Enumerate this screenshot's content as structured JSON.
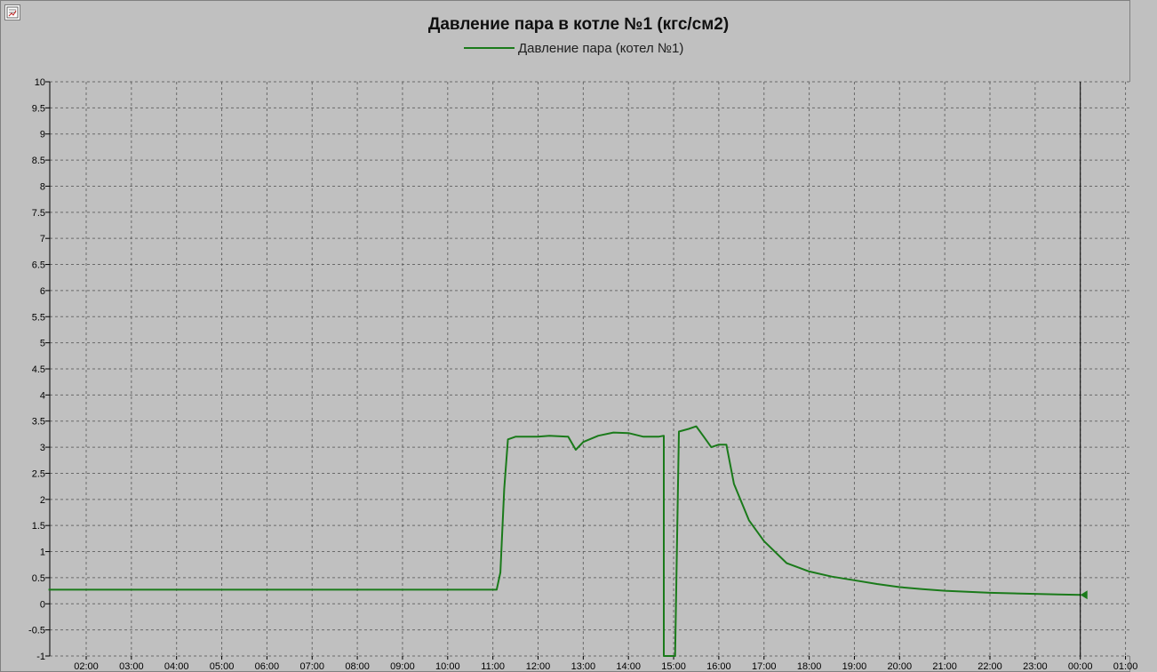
{
  "window": {
    "icon": "chart-properties-icon"
  },
  "chart_data": {
    "type": "line",
    "title": "Давление пара в котле №1 (кгс/см2)",
    "xlabel": "",
    "ylabel": "",
    "ylim": [
      -1,
      10
    ],
    "xlim": [
      "01:10",
      "01:00"
    ],
    "grid": true,
    "legend_position": "top-center",
    "y_ticks": [
      "10",
      "9.5",
      "9",
      "8.5",
      "8",
      "7.5",
      "7",
      "6.5",
      "6",
      "5.5",
      "5",
      "4.5",
      "4",
      "3.5",
      "3",
      "2.5",
      "2",
      "1.5",
      "1",
      "0.5",
      "0",
      "-0.5",
      "-1"
    ],
    "x_ticks": [
      "02:00",
      "03:00",
      "04:00",
      "05:00",
      "06:00",
      "07:00",
      "08:00",
      "09:00",
      "10:00",
      "11:00",
      "12:00",
      "13:00",
      "14:00",
      "15:00",
      "16:00",
      "17:00",
      "18:00",
      "19:00",
      "20:00",
      "21:00",
      "22:00",
      "23:00",
      "00:00",
      "01:00"
    ],
    "cursor_time": "00:00",
    "series": [
      {
        "name": "Давление пара (котел №1)",
        "color": "#1a7a1a",
        "points": [
          [
            "01:10",
            0.27
          ],
          [
            "11:05",
            0.27
          ],
          [
            "11:10",
            0.6
          ],
          [
            "11:15",
            2.2
          ],
          [
            "11:20",
            3.15
          ],
          [
            "11:30",
            3.2
          ],
          [
            "12:00",
            3.2
          ],
          [
            "12:15",
            3.22
          ],
          [
            "12:40",
            3.2
          ],
          [
            "12:50",
            2.95
          ],
          [
            "13:00",
            3.1
          ],
          [
            "13:20",
            3.22
          ],
          [
            "13:40",
            3.28
          ],
          [
            "14:00",
            3.27
          ],
          [
            "14:20",
            3.2
          ],
          [
            "14:40",
            3.2
          ],
          [
            "14:47",
            3.22
          ],
          [
            "14:47",
            -1.0
          ],
          [
            "14:57",
            -1.0
          ],
          [
            "15:02",
            -1.0
          ],
          [
            "15:07",
            3.3
          ],
          [
            "15:20",
            3.35
          ],
          [
            "15:30",
            3.4
          ],
          [
            "15:40",
            3.2
          ],
          [
            "15:50",
            3.0
          ],
          [
            "16:00",
            3.05
          ],
          [
            "16:10",
            3.05
          ],
          [
            "16:20",
            2.3
          ],
          [
            "16:40",
            1.6
          ],
          [
            "17:00",
            1.2
          ],
          [
            "17:30",
            0.78
          ],
          [
            "18:00",
            0.62
          ],
          [
            "18:30",
            0.52
          ],
          [
            "19:00",
            0.45
          ],
          [
            "19:30",
            0.38
          ],
          [
            "20:00",
            0.32
          ],
          [
            "20:30",
            0.28
          ],
          [
            "21:00",
            0.25
          ],
          [
            "21:30",
            0.23
          ],
          [
            "22:00",
            0.21
          ],
          [
            "22:30",
            0.2
          ],
          [
            "23:00",
            0.19
          ],
          [
            "23:30",
            0.18
          ],
          [
            "00:00",
            0.17
          ]
        ]
      }
    ]
  }
}
